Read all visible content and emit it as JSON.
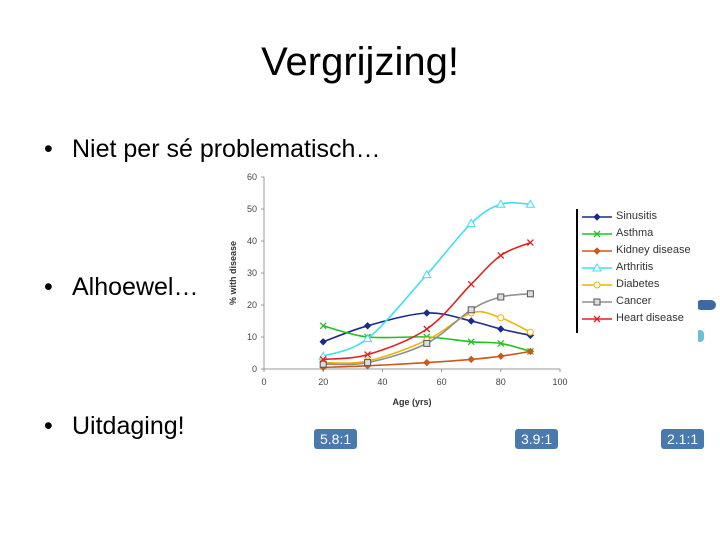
{
  "slide": {
    "title": "Vergrijzing!",
    "bullets": [
      "Niet per sé problematisch…",
      "Alhoewel…",
      "Uitdaging!"
    ],
    "bullet_glyph": "•"
  },
  "ratios": [
    "5.8:1",
    "3.9:1",
    "2.1:1"
  ],
  "chart_data": {
    "type": "line",
    "xlabel": "Age (yrs)",
    "ylabel": "% with disease",
    "xlim": [
      0,
      100
    ],
    "ylim": [
      0,
      60
    ],
    "xticks": [
      0,
      20,
      40,
      60,
      80,
      100
    ],
    "yticks": [
      0,
      10,
      20,
      30,
      40,
      50,
      60
    ],
    "legend_position": "right",
    "series": [
      {
        "name": "Sinusitis",
        "color": "#1a2b8c",
        "marker": "diamond",
        "x": [
          20,
          35,
          55,
          70,
          80,
          90
        ],
        "y": [
          8.5,
          13.5,
          17.5,
          15,
          12.5,
          10.5
        ]
      },
      {
        "name": "Asthma",
        "color": "#22c022",
        "marker": "x",
        "x": [
          20,
          35,
          55,
          70,
          80,
          90
        ],
        "y": [
          13.5,
          10,
          10,
          8.5,
          8,
          5.5
        ]
      },
      {
        "name": "Kidney disease",
        "color": "#c85a1e",
        "marker": "diamond",
        "x": [
          20,
          35,
          55,
          70,
          80,
          90
        ],
        "y": [
          0.5,
          1,
          2,
          3,
          4,
          5.5
        ]
      },
      {
        "name": "Arthritis",
        "color": "#3ee0f0",
        "marker": "triangle",
        "x": [
          20,
          35,
          55,
          70,
          80,
          90
        ],
        "y": [
          4,
          9.5,
          29.5,
          45.5,
          51.5,
          51.5
        ]
      },
      {
        "name": "Diabetes",
        "color": "#f0b400",
        "marker": "circle",
        "x": [
          20,
          35,
          55,
          70,
          80,
          90
        ],
        "y": [
          2,
          2.5,
          9,
          17.5,
          16,
          11.5
        ]
      },
      {
        "name": "Cancer",
        "color": "#909090",
        "marker": "square",
        "x": [
          20,
          35,
          55,
          70,
          80,
          90
        ],
        "y": [
          1.5,
          2,
          8,
          18.5,
          22.5,
          23.5
        ]
      },
      {
        "name": "Heart disease",
        "color": "#e02020",
        "marker": "x",
        "x": [
          20,
          35,
          55,
          70,
          80,
          90
        ],
        "y": [
          3,
          4.5,
          12.5,
          26.5,
          35.5,
          39.5
        ]
      }
    ]
  }
}
